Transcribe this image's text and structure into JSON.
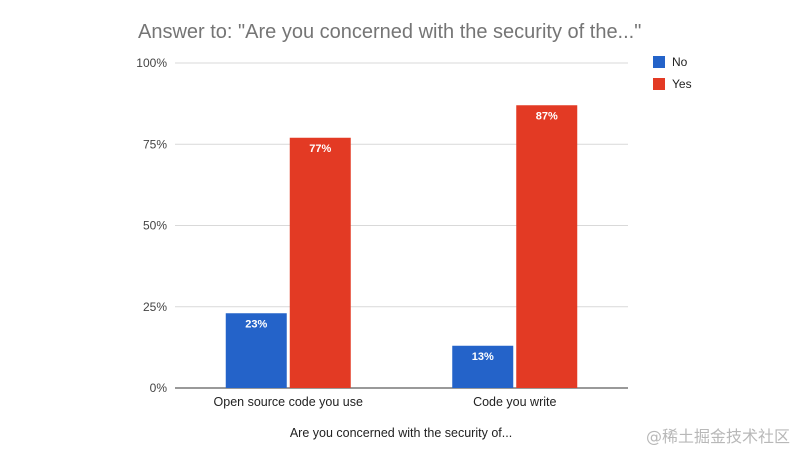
{
  "chart_data": {
    "type": "bar",
    "title": "Answer to: \"Are you concerned with the security of the...\"",
    "xlabel": "Are you concerned with the security of...",
    "ylabel": "",
    "categories": [
      "Open source code you use",
      "Code you write"
    ],
    "series": [
      {
        "name": "No",
        "values": [
          23,
          13
        ],
        "color": "#2463c9"
      },
      {
        "name": "Yes",
        "values": [
          77,
          87
        ],
        "color": "#e33a24"
      }
    ],
    "ylim": [
      0,
      100
    ],
    "yticks": [
      "0%",
      "25%",
      "50%",
      "75%",
      "100%"
    ],
    "data_label_suffix": "%",
    "grid": true,
    "legend_position": "right"
  },
  "watermark": "@稀土掘金技术社区"
}
